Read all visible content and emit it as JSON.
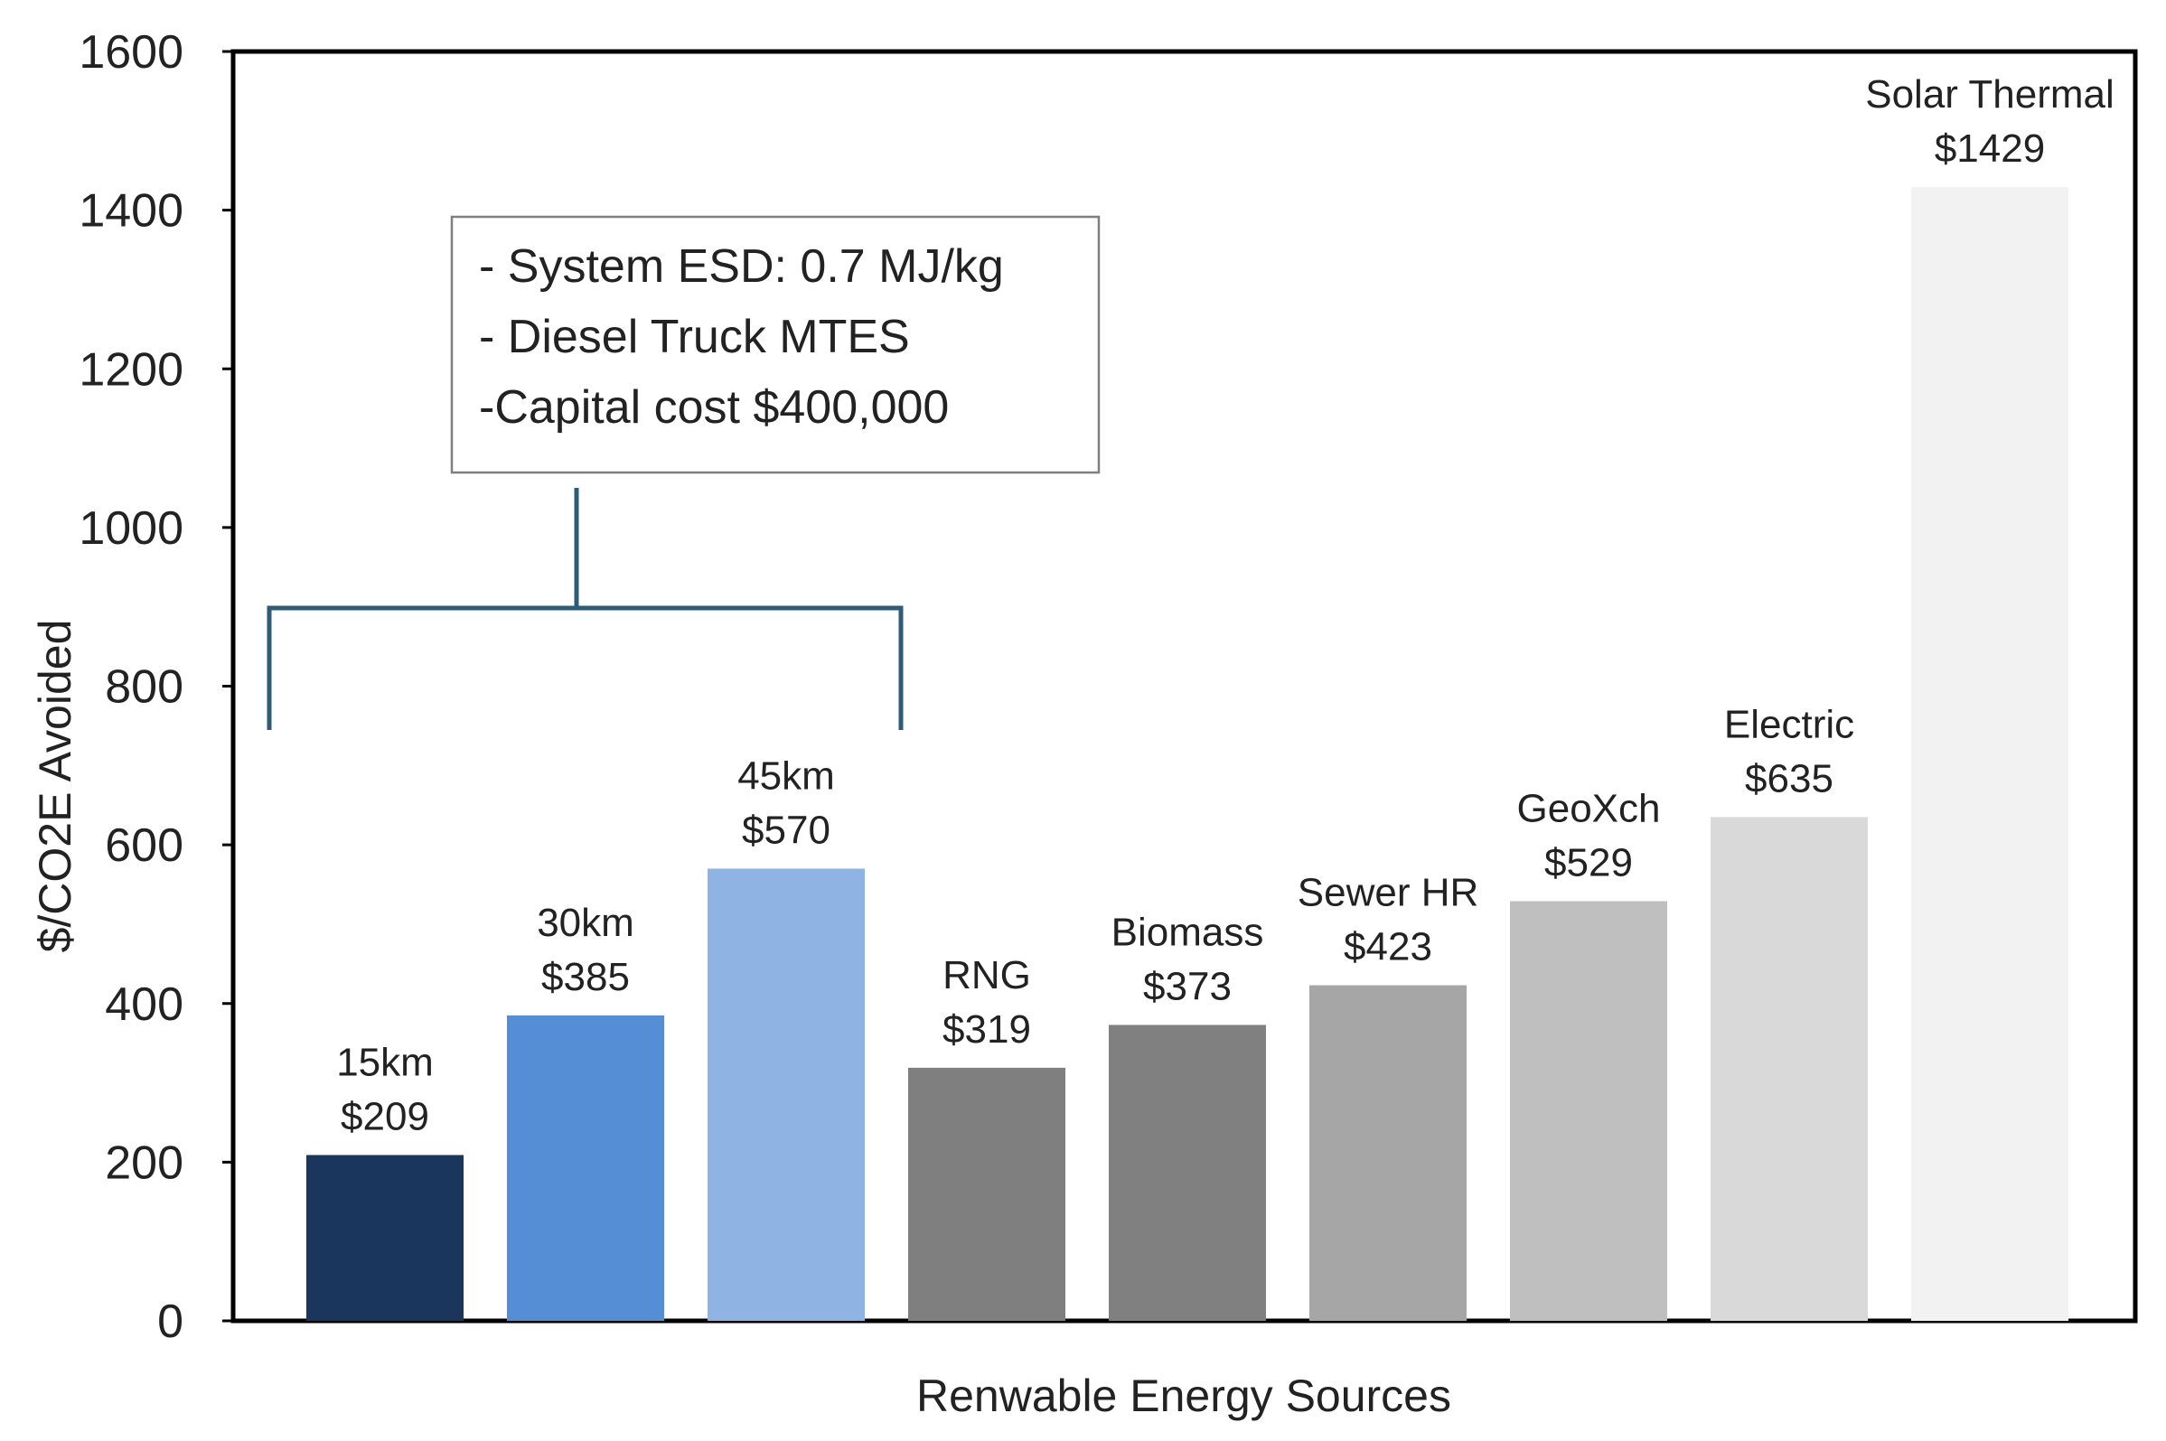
{
  "chart_data": {
    "type": "bar",
    "title": "",
    "xlabel": "Renwable Energy Sources",
    "ylabel": "$/CO2E Avoided",
    "ylim": [
      0,
      1600
    ],
    "yticks": [
      0,
      200,
      400,
      600,
      800,
      1000,
      1200,
      1400,
      1600
    ],
    "grid": false,
    "bars": [
      {
        "category": "15km",
        "label": "15km",
        "value": 209,
        "value_label": "$209",
        "color": "#1b365d"
      },
      {
        "category": "30km",
        "label": "30km",
        "value": 385,
        "value_label": "$385",
        "color": "#558ed5"
      },
      {
        "category": "45km",
        "label": "45km",
        "value": 570,
        "value_label": "$570",
        "color": "#8fb4e3"
      },
      {
        "category": "RNG",
        "label": "RNG",
        "value": 319,
        "value_label": "$319",
        "color": "#7f7f7f"
      },
      {
        "category": "Biomass",
        "label": "Biomass",
        "value": 373,
        "value_label": "$373",
        "color": "#808080"
      },
      {
        "category": "Sewer HR",
        "label": "Sewer HR",
        "value": 423,
        "value_label": "$423",
        "color": "#a6a6a6"
      },
      {
        "category": "GeoXch",
        "label": "GeoXch",
        "value": 529,
        "value_label": "$529",
        "color": "#bfbfbf"
      },
      {
        "category": "Electric",
        "label": "Electric",
        "value": 635,
        "value_label": "$635",
        "color": "#d9d9d9"
      },
      {
        "category": "Solar Thermal",
        "label": "Solar Thermal",
        "value": 1429,
        "value_label": "$1429",
        "color": "#f2f2f2"
      }
    ],
    "annotation": {
      "lines": [
        "- System ESD: 0.7 MJ/kg",
        "- Diesel Truck MTES",
        "-Capital cost $400,000"
      ],
      "bracket_color": "#2e5c78",
      "applies_to": [
        "15km",
        "30km",
        "45km"
      ]
    }
  }
}
